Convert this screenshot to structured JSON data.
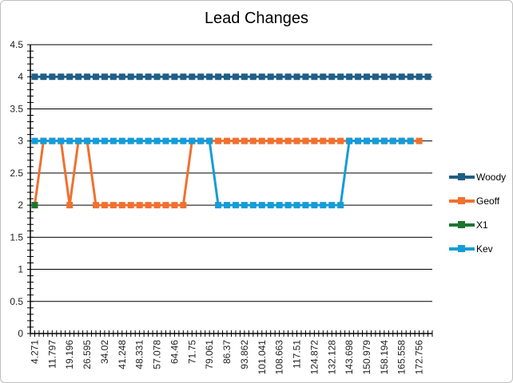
{
  "chart_data": {
    "type": "line",
    "title": "Lead Changes",
    "xlabel": "",
    "ylabel": "",
    "ylim": [
      0,
      4.5
    ],
    "y_major_unit": 0.5,
    "y_minor_unit": 0.1,
    "y_ticks": [
      "0",
      "0.5",
      "1",
      "1.5",
      "2",
      "2.5",
      "3",
      "3.5",
      "4",
      "4.5"
    ],
    "grid": true,
    "legend_position": "right",
    "x_tick_labels": [
      "4.271",
      "11.797",
      "19.196",
      "26.595",
      "34.02",
      "41.248",
      "48.331",
      "57.078",
      "64.46",
      "71.75",
      "79.061",
      "86.37",
      "93.862",
      "101.041",
      "108.663",
      "117.51",
      "124.872",
      "132.128",
      "143.698",
      "150.979",
      "158.194",
      "165.558",
      "172.756"
    ],
    "category_count": 46,
    "series": [
      {
        "name": "Woody",
        "color": "#1f5f86",
        "values": [
          4,
          4,
          4,
          4,
          4,
          4,
          4,
          4,
          4,
          4,
          4,
          4,
          4,
          4,
          4,
          4,
          4,
          4,
          4,
          4,
          4,
          4,
          4,
          4,
          4,
          4,
          4,
          4,
          4,
          4,
          4,
          4,
          4,
          4,
          4,
          4,
          4,
          4,
          4,
          4,
          4,
          4,
          4,
          4,
          4,
          4
        ]
      },
      {
        "name": "Geoff",
        "color": "#f07030",
        "values": [
          2,
          3,
          3,
          3,
          2,
          3,
          3,
          2,
          2,
          2,
          2,
          2,
          2,
          2,
          2,
          2,
          2,
          2,
          3,
          3,
          3,
          3,
          3,
          3,
          3,
          3,
          3,
          3,
          3,
          3,
          3,
          3,
          3,
          3,
          3,
          3,
          3,
          3,
          3,
          3,
          3,
          3,
          3,
          3,
          3
        ]
      },
      {
        "name": "X1",
        "color": "#1e7430",
        "values": [
          2
        ]
      },
      {
        "name": "Kev",
        "color": "#159cd8",
        "values": [
          3,
          3,
          3,
          3,
          3,
          3,
          3,
          3,
          3,
          3,
          3,
          3,
          3,
          3,
          3,
          3,
          3,
          3,
          3,
          3,
          3,
          2,
          2,
          2,
          2,
          2,
          2,
          2,
          2,
          2,
          2,
          2,
          2,
          2,
          2,
          2,
          3,
          3,
          3,
          3,
          3,
          3,
          3,
          3
        ]
      }
    ]
  }
}
